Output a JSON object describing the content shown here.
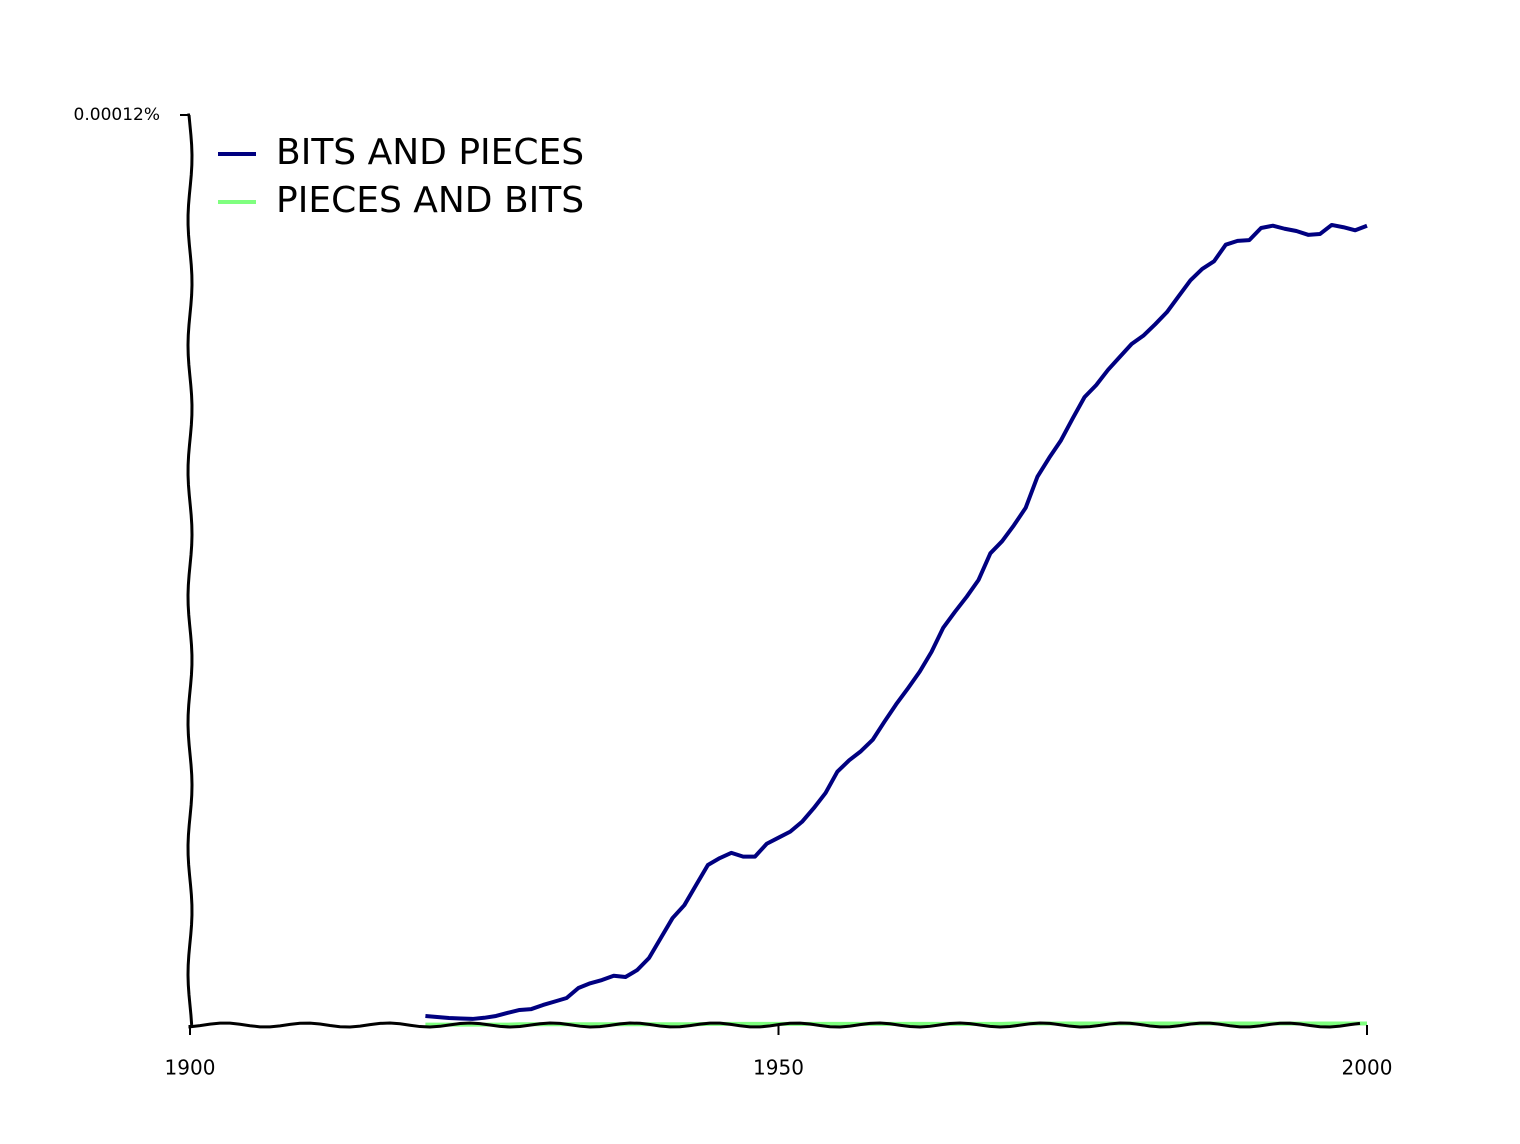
{
  "chart_data": {
    "type": "line",
    "x": [
      1920,
      1921,
      1922,
      1923,
      1924,
      1925,
      1926,
      1927,
      1928,
      1929,
      1930,
      1931,
      1932,
      1933,
      1934,
      1935,
      1936,
      1937,
      1938,
      1939,
      1940,
      1941,
      1942,
      1943,
      1944,
      1945,
      1946,
      1947,
      1948,
      1949,
      1950,
      1951,
      1952,
      1953,
      1954,
      1955,
      1956,
      1957,
      1958,
      1959,
      1960,
      1961,
      1962,
      1963,
      1964,
      1965,
      1966,
      1967,
      1968,
      1969,
      1970,
      1971,
      1972,
      1973,
      1974,
      1975,
      1976,
      1977,
      1978,
      1979,
      1980,
      1981,
      1982,
      1983,
      1984,
      1985,
      1986,
      1987,
      1988,
      1989,
      1990,
      1991,
      1992,
      1993,
      1994,
      1995,
      1996,
      1997,
      1998,
      1999,
      2000
    ],
    "series": [
      {
        "name": "BITS AND PIECES",
        "color": "#000080",
        "values": [
          1.19e-06,
          1.05e-06,
          9.2e-07,
          8.5e-07,
          8e-07,
          9.5e-07,
          1.19e-06,
          1.6e-06,
          1.98e-06,
          2.1e-06,
          2.64e-06,
          3.1e-06,
          3.56e-06,
          4.88e-06,
          5.5e-06,
          5.93e-06,
          6.5e-06,
          6.33e-06,
          7.25e-06,
          8.84e-06,
          1.147e-05,
          1.41e-05,
          1.58e-05,
          1.846e-05,
          2.11e-05,
          2.2e-05,
          2.27e-05,
          2.22e-05,
          2.22e-05,
          2.39e-05,
          2.47e-05,
          2.55e-05,
          2.68e-05,
          2.86e-05,
          3.06e-05,
          3.34e-05,
          3.49e-05,
          3.61e-05,
          3.76e-05,
          4e-05,
          4.23e-05,
          4.44e-05,
          4.66e-05,
          4.92e-05,
          5.24e-05,
          5.45e-05,
          5.65e-05,
          5.87e-05,
          6.22e-05,
          6.38e-05,
          6.59e-05,
          6.82e-05,
          7.23e-05,
          7.48e-05,
          7.71e-05,
          8e-05,
          8.28e-05,
          8.44e-05,
          8.64e-05,
          8.81e-05,
          8.98e-05,
          9.09e-05,
          9.24e-05,
          9.4e-05,
          9.61e-05,
          9.82e-05,
          9.97e-05,
          0.0001007,
          0.0001029,
          0.0001034,
          0.0001035,
          0.0001051,
          0.0001054,
          0.000105,
          0.0001047,
          0.0001042,
          0.0001043,
          0.0001055,
          0.0001052,
          0.0001048,
          0.0001054
        ]
      },
      {
        "name": "PIECES AND BITS",
        "color": "#7fff7f",
        "values": [
          5e-08,
          5e-08,
          5e-08,
          5e-08,
          5e-08,
          5e-08,
          5e-08,
          5e-08,
          1e-07,
          1e-07,
          1e-07,
          1e-07,
          1e-07,
          1e-07,
          1e-07,
          1e-07,
          1e-07,
          1e-07,
          1e-07,
          1e-07,
          1e-07,
          1e-07,
          1e-07,
          1e-07,
          1.5e-07,
          1.5e-07,
          1.5e-07,
          1.5e-07,
          1.5e-07,
          1.5e-07,
          1.5e-07,
          1.5e-07,
          1.5e-07,
          1.5e-07,
          1.5e-07,
          1.5e-07,
          1.5e-07,
          1.5e-07,
          1.5e-07,
          1.5e-07,
          1.5e-07,
          1.5e-07,
          1.5e-07,
          1.5e-07,
          1.5e-07,
          1.5e-07,
          1.5e-07,
          1.5e-07,
          1.5e-07,
          1.5e-07,
          2e-07,
          2e-07,
          2e-07,
          2e-07,
          2e-07,
          2e-07,
          2e-07,
          2e-07,
          2e-07,
          2e-07,
          2e-07,
          2e-07,
          2e-07,
          2e-07,
          2e-07,
          2e-07,
          2e-07,
          2e-07,
          2e-07,
          2e-07,
          2e-07,
          2e-07,
          2e-07,
          2e-07,
          2e-07,
          2e-07,
          2e-07,
          2e-07,
          2e-07,
          2e-07,
          2e-07
        ]
      }
    ],
    "xlim": [
      1900,
      2000
    ],
    "xticks": [
      1900,
      1950,
      2000
    ],
    "ylim": [
      0,
      0.00012
    ],
    "yticks": [
      {
        "value": 0.00012,
        "label": "0.00012%"
      }
    ],
    "legend": "upper left"
  }
}
